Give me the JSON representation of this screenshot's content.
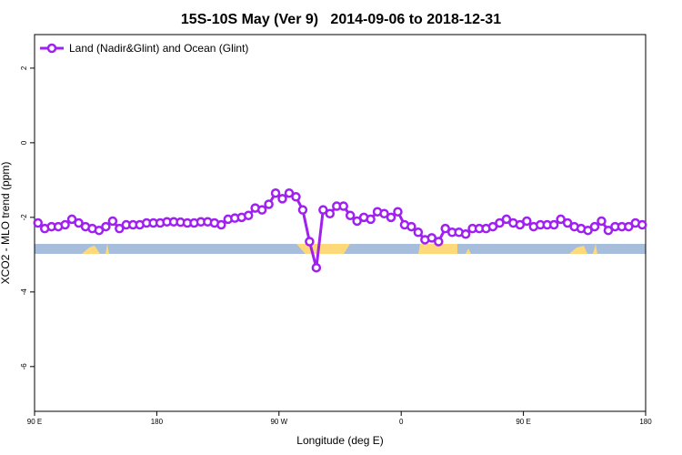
{
  "chart_data": {
    "type": "line",
    "title": "15S-10S May (Ver 9)   2014-09-06 to 2018-12-31",
    "xlabel": "Longitude (deg E)",
    "ylabel": "XCO2 - MLO trend (ppm)",
    "xlim": [
      90,
      540
    ],
    "ylim": [
      -7.2,
      2.9
    ],
    "xticks": [
      {
        "value": 90,
        "label": "90 E"
      },
      180,
      {
        "value": 270,
        "label": "90 W"
      },
      {
        "value": 360,
        "label": "0"
      },
      {
        "value": 450,
        "label": "90 E"
      },
      {
        "value": 540,
        "label": "180"
      }
    ],
    "yticks": [
      2,
      0,
      -2,
      -4,
      -6
    ],
    "legend": "top-left",
    "x": [
      92.5,
      97.5,
      102.5,
      107.5,
      112.5,
      117.5,
      122.5,
      127.5,
      132.5,
      137.5,
      142.5,
      147.5,
      152.5,
      157.5,
      162.5,
      167.5,
      172.5,
      177.5,
      182.5,
      187.5,
      192.5,
      197.5,
      202.5,
      207.5,
      212.5,
      217.5,
      222.5,
      227.5,
      232.5,
      237.5,
      242.5,
      247.5,
      252.5,
      257.5,
      262.5,
      267.5,
      272.5,
      277.5,
      282.5,
      287.5,
      292.5,
      297.5,
      302.5,
      307.5,
      312.5,
      317.5,
      322.5,
      327.5,
      332.5,
      337.5,
      342.5,
      347.5,
      352.5,
      357.5,
      362.5,
      367.5,
      372.5,
      377.5,
      382.5,
      387.5,
      392.5,
      397.5,
      402.5,
      407.5,
      412.5,
      417.5,
      422.5,
      427.5,
      432.5,
      437.5,
      442.5,
      447.5,
      452.5,
      457.5,
      462.5,
      467.5,
      472.5,
      477.5,
      482.5,
      487.5,
      492.5,
      497.5,
      502.5,
      507.5,
      512.5,
      517.5,
      522.5,
      527.5,
      532.5,
      537.5
    ],
    "series": [
      {
        "name": "Land (Nadir&Glint) and Ocean (Glint)",
        "color": "#a020f0",
        "values": [
          -2.15,
          -2.3,
          -2.25,
          -2.25,
          -2.2,
          -2.05,
          -2.15,
          -2.25,
          -2.3,
          -2.35,
          -2.25,
          -2.1,
          -2.3,
          -2.2,
          -2.2,
          -2.2,
          -2.15,
          -2.15,
          -2.15,
          -2.12,
          -2.12,
          -2.13,
          -2.15,
          -2.15,
          -2.12,
          -2.12,
          -2.15,
          -2.2,
          -2.05,
          -2.02,
          -2.0,
          -1.95,
          -1.75,
          -1.8,
          -1.65,
          -1.35,
          -1.5,
          -1.35,
          -1.45,
          -1.8,
          -2.65,
          -3.35,
          -1.8,
          -1.9,
          -1.7,
          -1.7,
          -1.95,
          -2.1,
          -2.0,
          -2.05,
          -1.85,
          -1.9,
          -2.0,
          -1.85,
          -2.2,
          -2.25,
          -2.4,
          -2.6,
          -2.55,
          -2.65,
          -2.3,
          -2.4,
          -2.4,
          -2.45,
          -2.3,
          -2.3,
          -2.3,
          -2.25,
          -2.15,
          -2.05,
          -2.15,
          -2.2,
          -2.1,
          -2.25,
          -2.2,
          -2.2,
          -2.2,
          -2.05,
          -2.15,
          -2.25,
          -2.3,
          -2.35,
          -2.25,
          -2.1,
          -2.35,
          -2.25,
          -2.25,
          -2.25,
          -2.15,
          -2.2
        ]
      }
    ]
  }
}
